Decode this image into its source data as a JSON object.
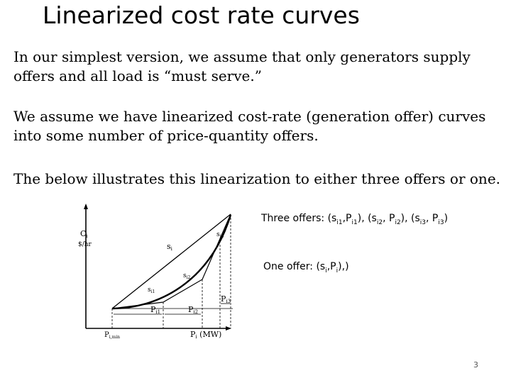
{
  "title": "Linearized cost rate curves",
  "paragraphs": [
    [
      "In our simplest version, we assume that only generators supply",
      "offers and all load is “must serve.”"
    ],
    [
      "We assume we have linearized cost-rate (generation offer) curves",
      "into some number of price-quantity offers."
    ],
    [
      "The below illustrates this linearization to either three offers or one."
    ]
  ],
  "captions": {
    "three_offers": {
      "prefix": "Three offers: (s",
      "s1sub": "i1",
      "c1": ",P",
      "p1sub": "i1",
      "c2": "),  (s",
      "s2sub": "i2",
      "c3": ", P",
      "p2sub": "i2",
      "c4": "),  (s",
      "s3sub": "i3",
      "c5": ", P",
      "p3sub": "i3",
      "suffix": ")"
    },
    "one_offer": {
      "prefix": "One offer: (s",
      "ssub": "i",
      "c1": ",P",
      "psub": "i",
      "suffix": "),)"
    }
  },
  "diagram": {
    "y_label_top": "C",
    "y_label_top_sub": "i",
    "y_label_bottom": "$/hr",
    "slope_labels": {
      "si": "s",
      "si_sub": "i",
      "si1": "s",
      "si1_sub": "i1",
      "si2": "s",
      "si2_sub": "i2",
      "si3": "s",
      "si3_sub": "i3"
    },
    "segment_labels": {
      "pi1": "P",
      "pi1_sub": "i1",
      "pi2": "P",
      "pi2_sub": "i2",
      "pi3": "P",
      "pi3_sub": "i3"
    },
    "x_min_label": "P",
    "x_min_sub": "i,min",
    "x_axis_label": "P",
    "x_axis_sub": "i",
    "x_axis_unit": " (MW)"
  },
  "page_number": "3"
}
